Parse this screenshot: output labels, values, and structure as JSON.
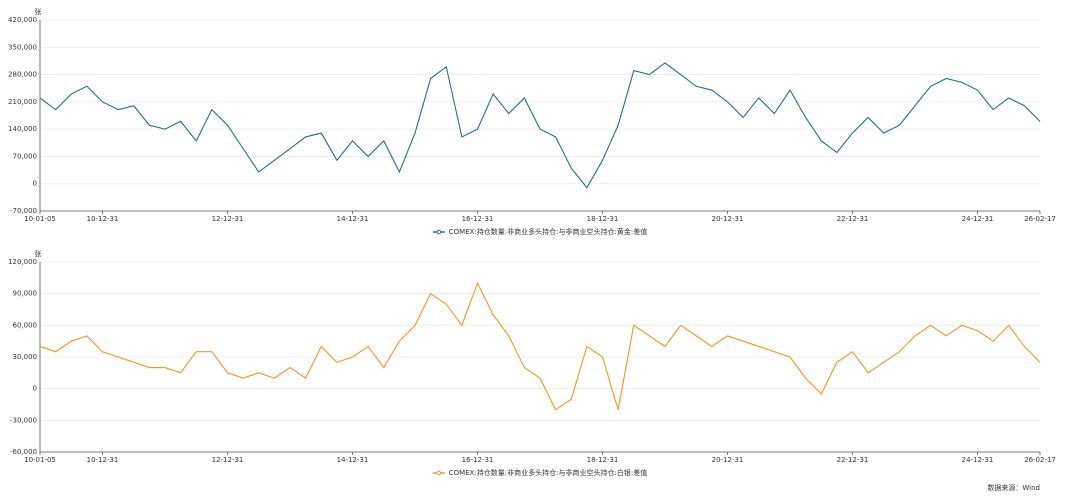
{
  "source": "数据来源：Wind",
  "chart_data": [
    {
      "type": "line",
      "y_unit": "张",
      "categories": [
        "10-01-05",
        null,
        null,
        null,
        "10-12-31",
        null,
        null,
        null,
        null,
        null,
        null,
        null,
        "12-12-31",
        null,
        null,
        null,
        null,
        null,
        null,
        null,
        "14-12-31",
        null,
        null,
        null,
        null,
        null,
        null,
        null,
        "16-12-31",
        null,
        null,
        null,
        null,
        null,
        null,
        null,
        "18-12-31",
        null,
        null,
        null,
        null,
        null,
        null,
        null,
        "20-12-31",
        null,
        null,
        null,
        null,
        null,
        null,
        null,
        "22-12-31",
        null,
        null,
        null,
        null,
        null,
        null,
        null,
        "24-12-31",
        null,
        null,
        null,
        "26-02-17"
      ],
      "series": [
        {
          "name": "COMEX:持仓数量:非商业多头持仓:与非商业空头持仓:黄金:差值",
          "color": "#1f6f8b",
          "values": [
            220000,
            190000,
            230000,
            250000,
            210000,
            190000,
            200000,
            150000,
            140000,
            160000,
            110000,
            190000,
            150000,
            90000,
            30000,
            60000,
            90000,
            120000,
            130000,
            60000,
            110000,
            70000,
            110000,
            30000,
            130000,
            270000,
            300000,
            120000,
            140000,
            230000,
            180000,
            220000,
            140000,
            120000,
            40000,
            -10000,
            60000,
            150000,
            290000,
            280000,
            310000,
            280000,
            250000,
            240000,
            210000,
            170000,
            220000,
            180000,
            240000,
            170000,
            110000,
            80000,
            130000,
            170000,
            130000,
            150000,
            200000,
            250000,
            270000,
            260000,
            240000,
            190000,
            220000,
            200000,
            160000
          ]
        }
      ],
      "ylim": [
        -70000,
        420000
      ],
      "yticks": [
        {
          "value": -70000,
          "label": "-70,000"
        },
        0,
        {
          "value": 70000,
          "label": "70,000"
        },
        {
          "value": 140000,
          "label": "140,000"
        },
        {
          "value": 210000,
          "label": "210,000"
        },
        {
          "value": 280000,
          "label": "280,000"
        },
        {
          "value": 350000,
          "label": "350,000"
        },
        {
          "value": 420000,
          "label": "420,000"
        }
      ],
      "grid": true
    },
    {
      "type": "line",
      "y_unit": "张",
      "categories": [
        "10-01-05",
        null,
        null,
        null,
        "10-12-31",
        null,
        null,
        null,
        null,
        null,
        null,
        null,
        "12-12-31",
        null,
        null,
        null,
        null,
        null,
        null,
        null,
        "14-12-31",
        null,
        null,
        null,
        null,
        null,
        null,
        null,
        "16-12-31",
        null,
        null,
        null,
        null,
        null,
        null,
        null,
        "18-12-31",
        null,
        null,
        null,
        null,
        null,
        null,
        null,
        "20-12-31",
        null,
        null,
        null,
        null,
        null,
        null,
        null,
        "22-12-31",
        null,
        null,
        null,
        null,
        null,
        null,
        null,
        "24-12-31",
        null,
        null,
        null,
        "26-02-17"
      ],
      "series": [
        {
          "name": "COMEX:持仓数量:非商业多头持仓:与非商业空头持仓:白银:差值",
          "color": "#f0961e",
          "values": [
            40000,
            35000,
            45000,
            50000,
            35000,
            30000,
            25000,
            20000,
            20000,
            15000,
            35000,
            35000,
            15000,
            10000,
            15000,
            10000,
            20000,
            10000,
            40000,
            25000,
            30000,
            40000,
            20000,
            45000,
            60000,
            90000,
            80000,
            60000,
            100000,
            70000,
            50000,
            20000,
            10000,
            -20000,
            -10000,
            40000,
            30000,
            -20000,
            60000,
            50000,
            40000,
            60000,
            50000,
            40000,
            50000,
            45000,
            40000,
            35000,
            30000,
            10000,
            -5000,
            25000,
            35000,
            15000,
            25000,
            35000,
            50000,
            60000,
            50000,
            60000,
            55000,
            45000,
            60000,
            40000,
            25000
          ]
        }
      ],
      "ylim": [
        -60000,
        120000
      ],
      "yticks": [
        {
          "value": -60000,
          "label": "-60,000"
        },
        {
          "value": -30000,
          "label": "-30,000"
        },
        0,
        {
          "value": 30000,
          "label": "30,000"
        },
        {
          "value": 60000,
          "label": "60,000"
        },
        {
          "value": 90000,
          "label": "90,000"
        },
        {
          "value": 120000,
          "label": "120,000"
        }
      ],
      "grid": true
    }
  ]
}
